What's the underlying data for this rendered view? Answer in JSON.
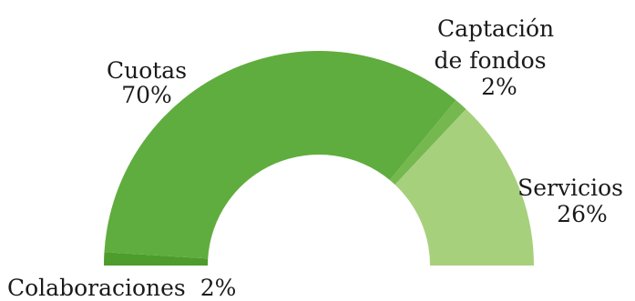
{
  "chart_data": {
    "type": "pie",
    "variant": "half-donut",
    "title": "",
    "slices": [
      {
        "label": "Colaboraciones",
        "percent_label": "2%",
        "value": 2,
        "color": "#4d9c2c"
      },
      {
        "label": "Cuotas",
        "percent_label": "70%",
        "value": 70,
        "color": "#5fad3e"
      },
      {
        "label": "Captación de fondos",
        "label_lines": [
          "Captación",
          "de fondos"
        ],
        "percent_label": "2%",
        "value": 2,
        "color": "#75b84f"
      },
      {
        "label": "Servicios",
        "percent_label": "26%",
        "value": 26,
        "color": "#a7d07d"
      }
    ],
    "legend": "none",
    "labels": "outside-slices"
  }
}
